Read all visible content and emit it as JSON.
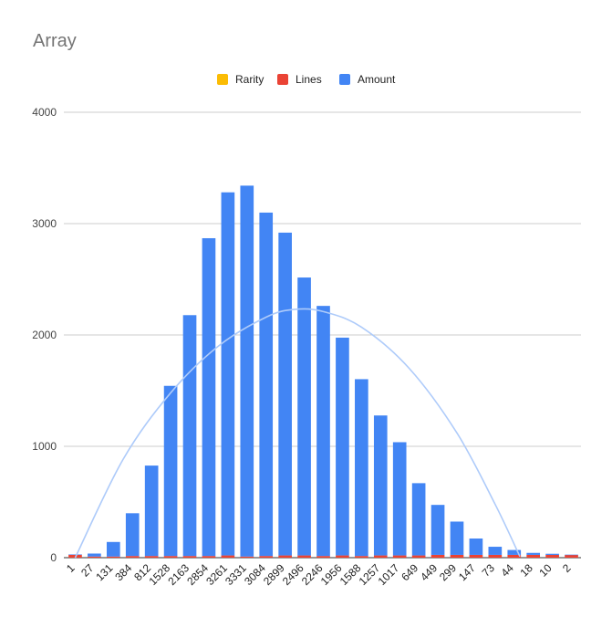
{
  "chart_data": {
    "type": "bar",
    "stacked": true,
    "title": "Array",
    "xlabel": "",
    "ylabel": "",
    "ylim": [
      0,
      4000
    ],
    "yticks": [
      0,
      1000,
      2000,
      3000,
      4000
    ],
    "grid": true,
    "legend_position": "top-center",
    "categories": [
      "1",
      "27",
      "131",
      "384",
      "812",
      "1528",
      "2163",
      "2854",
      "3261",
      "3331",
      "3084",
      "2899",
      "2496",
      "2246",
      "1956",
      "1588",
      "1257",
      "1017",
      "649",
      "449",
      "299",
      "147",
      "73",
      "44",
      "18",
      "10",
      "2"
    ],
    "series": [
      {
        "name": "Rarity",
        "color": "#fbbc04",
        "values": [
          0,
          0,
          0,
          0,
          0,
          0,
          0,
          0,
          0,
          0,
          0,
          0,
          0,
          0,
          0,
          0,
          0,
          0,
          0,
          0,
          0,
          0,
          0,
          0,
          0,
          0,
          0
        ]
      },
      {
        "name": "Lines",
        "color": "#ea4335",
        "values": [
          28,
          10,
          10,
          15,
          15,
          15,
          15,
          15,
          20,
          10,
          15,
          20,
          20,
          15,
          20,
          15,
          20,
          20,
          20,
          25,
          25,
          25,
          25,
          25,
          25,
          25,
          25
        ]
      },
      {
        "name": "Amount",
        "color": "#4285f4",
        "values": [
          1,
          27,
          131,
          384,
          812,
          1528,
          2163,
          2854,
          3261,
          3331,
          3084,
          2899,
          2496,
          2246,
          1956,
          1588,
          1257,
          1017,
          649,
          449,
          299,
          147,
          73,
          44,
          18,
          10,
          2
        ]
      }
    ],
    "trendline": {
      "type": "polynomial",
      "color": "#aecbfa",
      "points": [
        [
          0,
          0
        ],
        [
          2.5,
          880
        ],
        [
          5,
          1480
        ],
        [
          7.5,
          1900
        ],
        [
          10,
          2160
        ],
        [
          11.5,
          2230
        ],
        [
          13,
          2210
        ],
        [
          15,
          2070
        ],
        [
          17.5,
          1700
        ],
        [
          20,
          1120
        ],
        [
          22,
          480
        ],
        [
          23.3,
          10
        ]
      ]
    }
  }
}
